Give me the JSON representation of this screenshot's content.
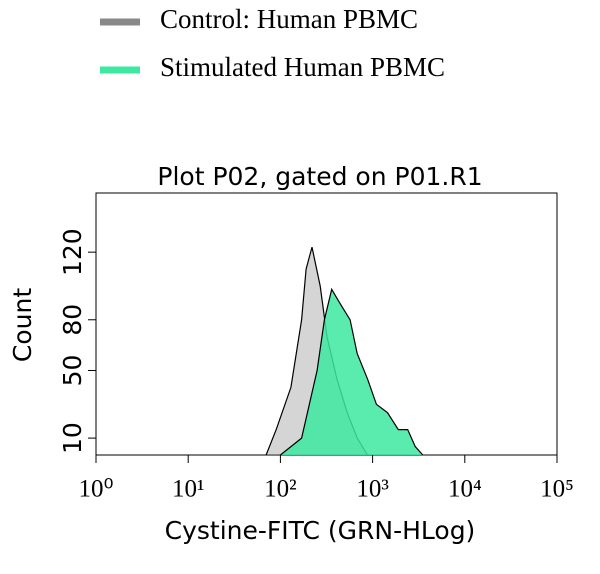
{
  "chart_data": {
    "type": "histogram-overlay",
    "title": "Plot P02, gated on P01.R1",
    "xlabel": "Cystine-FITC (GRN-HLog)",
    "ylabel": "Count",
    "xscale": "log",
    "xlim": [
      1,
      100000
    ],
    "ylim": [
      0,
      155
    ],
    "xticks": [
      {
        "value": 1,
        "label": "10⁰"
      },
      {
        "value": 10,
        "label": "10¹"
      },
      {
        "value": 100,
        "label": "10²"
      },
      {
        "value": 1000,
        "label": "10³"
      },
      {
        "value": 10000,
        "label": "10⁴"
      },
      {
        "value": 100000,
        "label": "10⁵"
      }
    ],
    "yticks": [
      10,
      50,
      80,
      120
    ],
    "series": [
      {
        "name": "Control: Human PBMC",
        "color": "#888888",
        "x": [
          70,
          90,
          130,
          170,
          190,
          220,
          270,
          320,
          410,
          530,
          680,
          880
        ],
        "values": [
          0,
          15,
          40,
          80,
          110,
          123,
          100,
          70,
          45,
          25,
          10,
          0
        ]
      },
      {
        "name": "Stimulated Human PBMC",
        "color": "#3de8a0",
        "x": [
          100,
          170,
          250,
          300,
          360,
          440,
          570,
          680,
          880,
          1100,
          1450,
          1900,
          2400,
          2900,
          3500
        ],
        "values": [
          0,
          10,
          50,
          80,
          98,
          90,
          80,
          60,
          45,
          30,
          25,
          15,
          15,
          5,
          0
        ]
      }
    ]
  }
}
